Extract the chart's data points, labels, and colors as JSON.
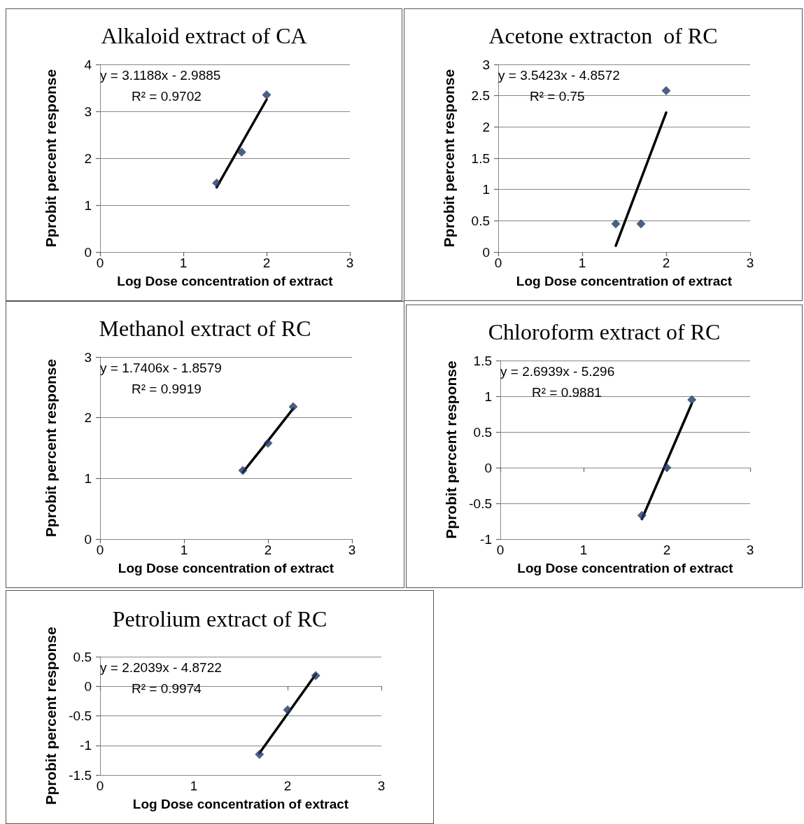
{
  "chart_data": [
    {
      "type": "scatter",
      "title": "Alkaloid extract of CA",
      "xlabel": "Log Dose concentration of extract",
      "ylabel": "Pprobit percent response",
      "annotations": [
        "y = 3.1188x - 2.9885",
        "R² = 0.9702"
      ],
      "grid": "y",
      "marker": "diamond",
      "xlim": [
        0,
        3
      ],
      "xticks": [
        0,
        1,
        2,
        3
      ],
      "ylim": [
        0,
        4
      ],
      "yticks": [
        0,
        1,
        2,
        3,
        4
      ],
      "series": [
        {
          "type": "scatter",
          "color": "#1f3864",
          "x": [
            1.4,
            1.7,
            2.0
          ],
          "values": [
            1.47,
            2.13,
            3.35
          ]
        },
        {
          "type": "line",
          "color": "#000000",
          "marker": "none",
          "x": [
            1.4,
            2.0
          ],
          "values": [
            1.38,
            3.25
          ]
        }
      ]
    },
    {
      "type": "scatter",
      "title": "Acetone extracton  of RC",
      "xlabel": "Log Dose concentration of extract",
      "ylabel": "Pprobit percent response",
      "annotations": [
        "y = 3.5423x - 4.8572",
        "R² = 0.75"
      ],
      "grid": "y",
      "marker": "diamond",
      "xlim": [
        0,
        3
      ],
      "xticks": [
        0,
        1,
        2,
        3
      ],
      "ylim": [
        0,
        3
      ],
      "yticks": [
        0,
        0.5,
        1,
        1.5,
        2,
        2.5,
        3
      ],
      "series": [
        {
          "type": "scatter",
          "color": "#1f3864",
          "x": [
            1.4,
            1.7,
            2.0
          ],
          "values": [
            0.45,
            0.45,
            2.58
          ]
        },
        {
          "type": "line",
          "color": "#000000",
          "marker": "none",
          "x": [
            1.4,
            2.0
          ],
          "values": [
            0.1,
            2.23
          ]
        }
      ]
    },
    {
      "type": "scatter",
      "title": "Methanol extract of RC",
      "xlabel": "Log Dose concentration of extract",
      "ylabel": "Pprobit percent response",
      "annotations": [
        "y = 1.7406x - 1.8579",
        "R² = 0.9919"
      ],
      "grid": "y",
      "marker": "diamond",
      "xlim": [
        0,
        3
      ],
      "xticks": [
        0,
        1,
        2,
        3
      ],
      "ylim": [
        0,
        3
      ],
      "yticks": [
        0,
        1,
        2,
        3
      ],
      "series": [
        {
          "type": "scatter",
          "color": "#1f3864",
          "x": [
            1.7,
            2.0,
            2.3
          ],
          "values": [
            1.13,
            1.58,
            2.18
          ]
        },
        {
          "type": "line",
          "color": "#000000",
          "marker": "none",
          "x": [
            1.7,
            2.0,
            2.3
          ],
          "values": [
            1.1,
            1.62,
            2.15
          ]
        }
      ]
    },
    {
      "type": "scatter",
      "title": "Chloroform extract of RC",
      "xlabel": "Log Dose concentration of extract",
      "ylabel": "Pprobit percent response",
      "annotations": [
        "y = 2.6939x - 5.296",
        "R² = 0.9881"
      ],
      "grid": "y",
      "marker": "diamond",
      "xlim": [
        0,
        3
      ],
      "xticks": [
        0,
        1,
        2,
        3
      ],
      "ylim": [
        -1,
        1.5
      ],
      "yticks": [
        -1,
        -0.5,
        0,
        0.5,
        1,
        1.5
      ],
      "series": [
        {
          "type": "scatter",
          "color": "#1f3864",
          "x": [
            1.7,
            2.0,
            2.3
          ],
          "values": [
            -0.67,
            0,
            0.95
          ]
        },
        {
          "type": "line",
          "color": "#000000",
          "marker": "none",
          "x": [
            1.7,
            2.3
          ],
          "values": [
            -0.72,
            0.9
          ]
        }
      ]
    },
    {
      "type": "scatter",
      "title": "Petrolium extract of RC",
      "xlabel": "Log Dose concentration of extract",
      "ylabel": "Pprobit percent response",
      "annotations": [
        "y = 2.2039x - 4.8722",
        "R² = 0.9974"
      ],
      "grid": "y",
      "marker": "diamond",
      "xlim": [
        0,
        3
      ],
      "xticks": [
        0,
        1,
        2,
        3
      ],
      "ylim": [
        -1.5,
        0.5
      ],
      "yticks": [
        -1.5,
        -1,
        -0.5,
        0,
        0.5
      ],
      "series": [
        {
          "type": "scatter",
          "color": "#1f3864",
          "x": [
            1.7,
            2.0,
            2.3
          ],
          "values": [
            -1.15,
            -0.4,
            0.18
          ]
        },
        {
          "type": "line",
          "color": "#000000",
          "marker": "none",
          "x": [
            1.7,
            2.3
          ],
          "values": [
            -1.13,
            0.2
          ]
        }
      ]
    }
  ]
}
